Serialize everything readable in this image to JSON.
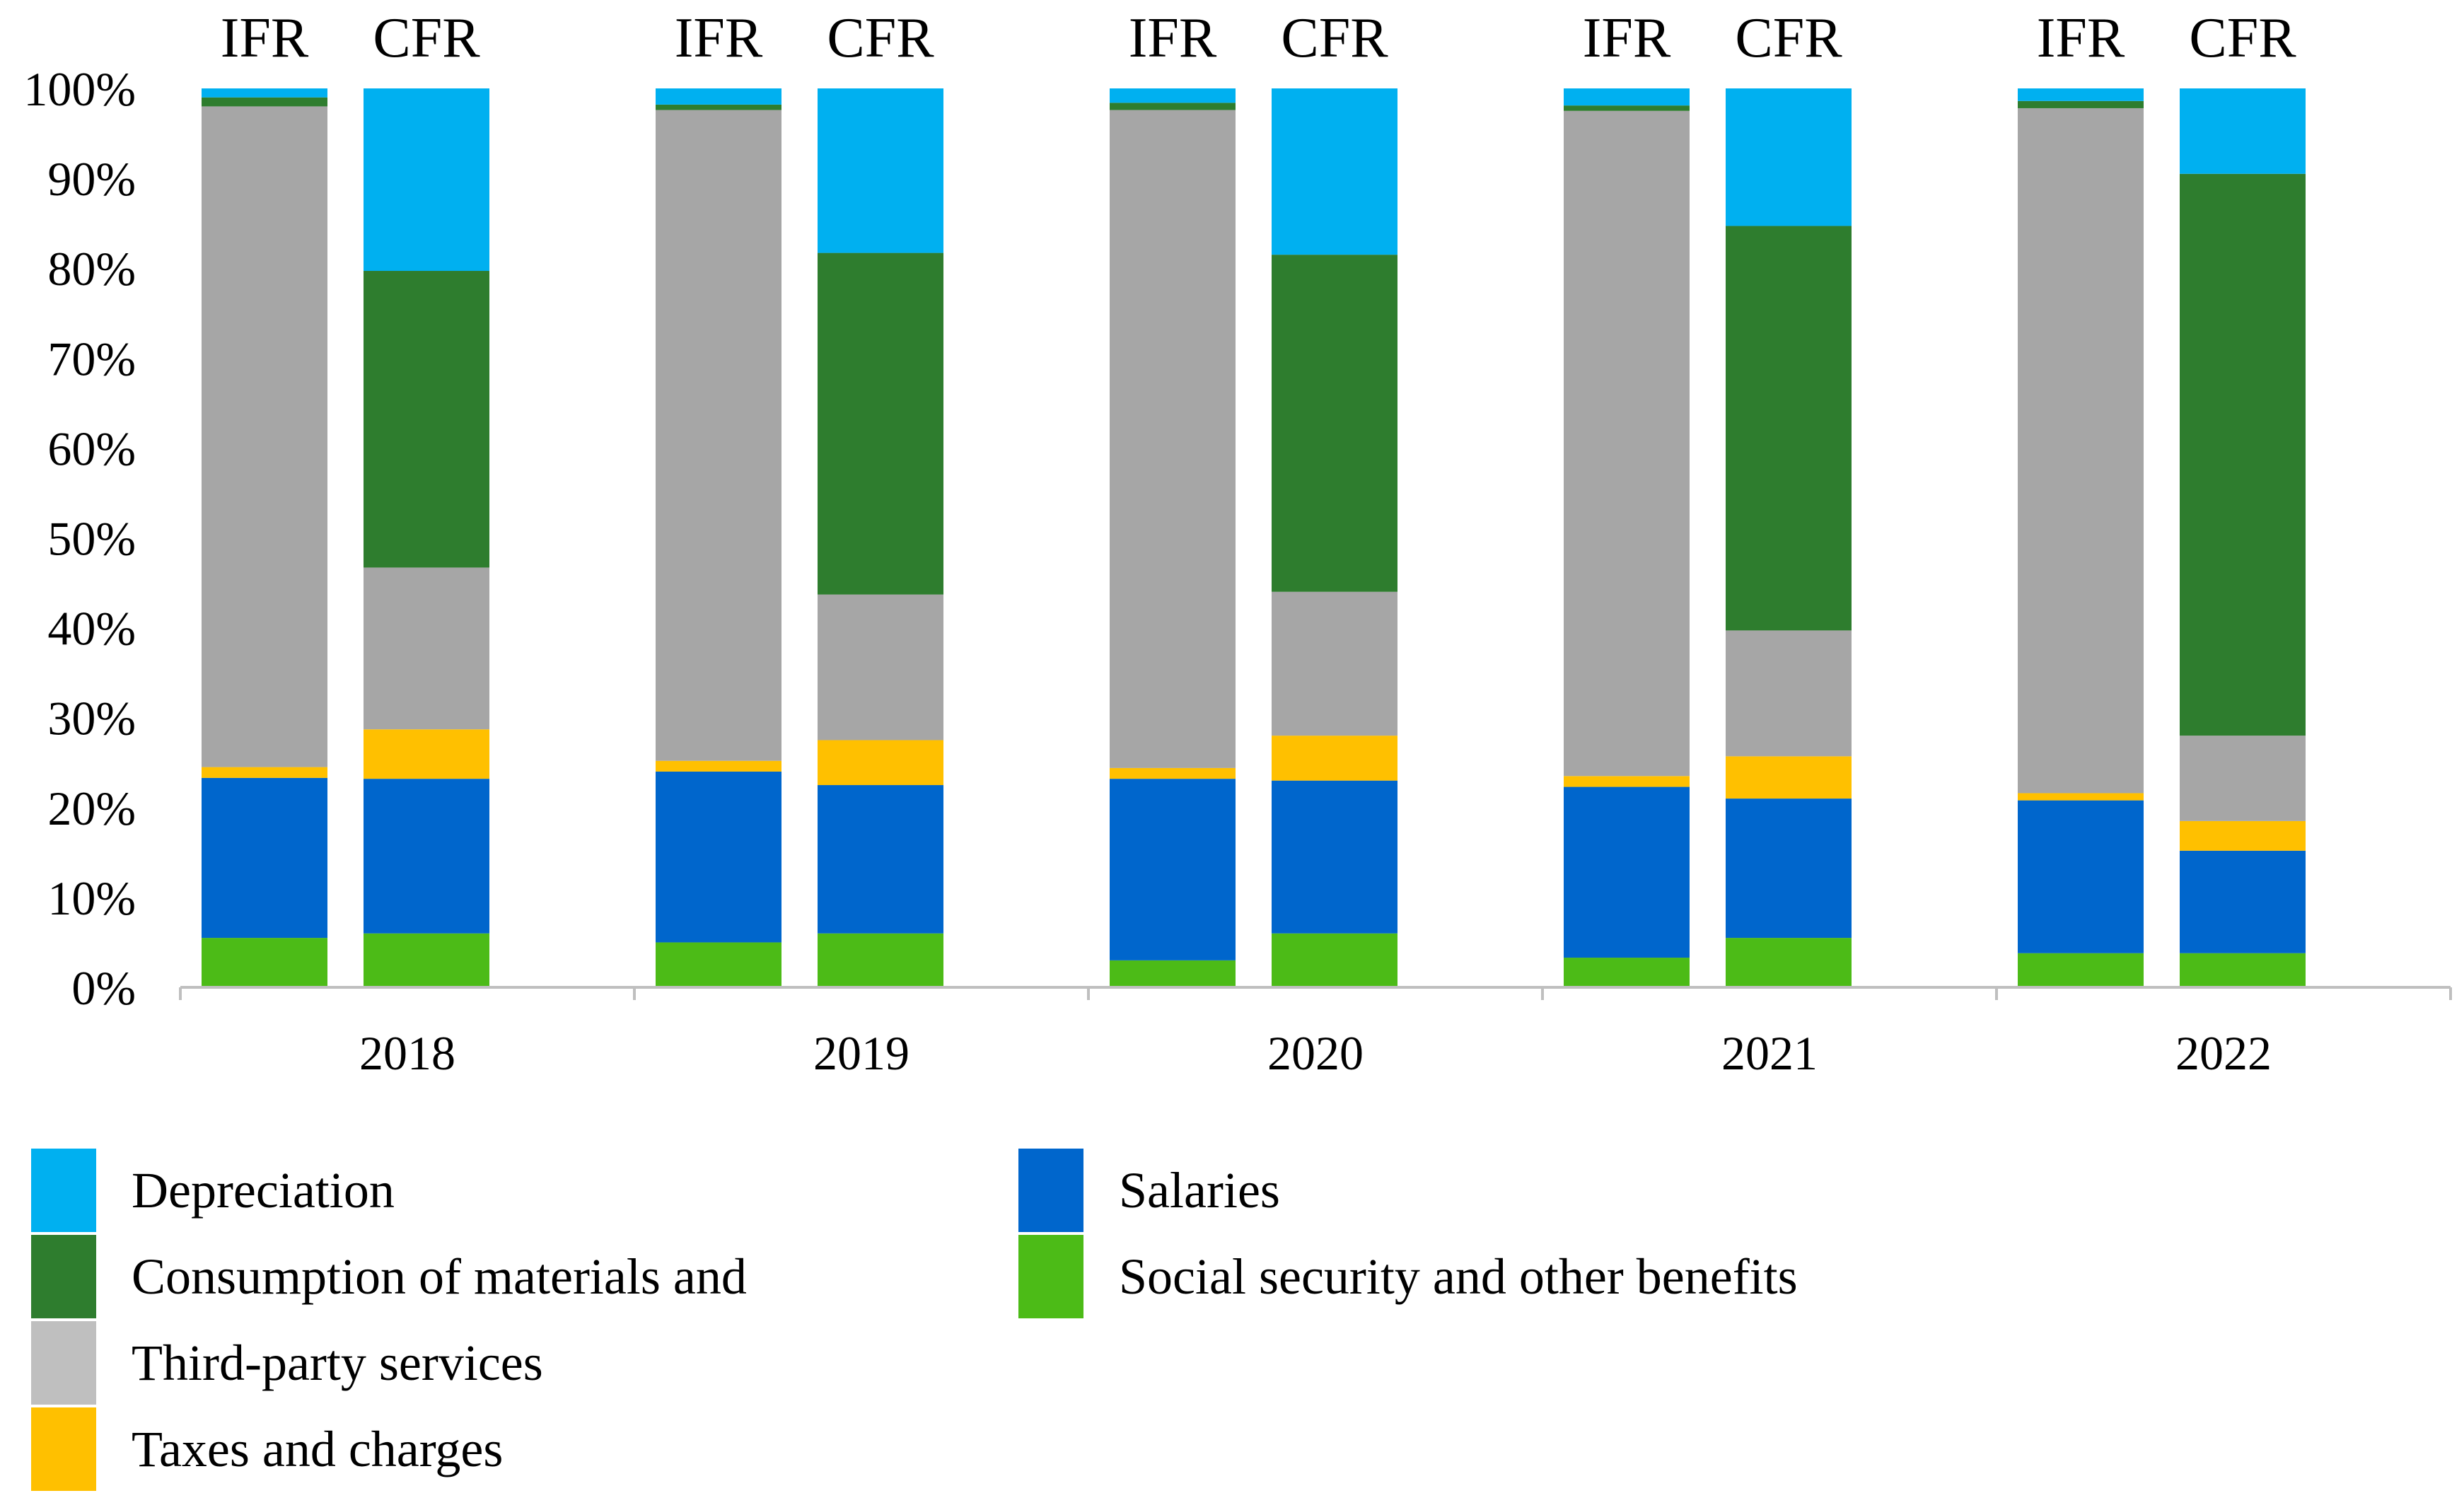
{
  "chart_data": {
    "type": "bar",
    "stacked": true,
    "normalized": true,
    "title": "",
    "xlabel": "",
    "ylabel": "",
    "ylim": [
      0,
      100
    ],
    "y_tick_labels": [
      "0%",
      "10%",
      "20%",
      "30%",
      "40%",
      "50%",
      "60%",
      "70%",
      "80%",
      "90%",
      "100%"
    ],
    "groups": [
      "2018",
      "2019",
      "2020",
      "2021",
      "2022"
    ],
    "bar_labels": [
      "IFR",
      "CFR"
    ],
    "series": [
      {
        "name": "Social security and other benefits",
        "color": "#4cbb17",
        "values": {
          "IFR": [
            5.5,
            5,
            3,
            3.3,
            3.8
          ],
          "CFR": [
            6,
            6,
            6,
            5.5,
            3.8
          ]
        }
      },
      {
        "name": "Salaries",
        "color": "#0066cc",
        "values": {
          "IFR": [
            17.8,
            19,
            20.2,
            19,
            17
          ],
          "CFR": [
            17.2,
            16.5,
            17,
            15.5,
            11.4
          ]
        }
      },
      {
        "name": "Taxes and charges",
        "color": "#ffc000",
        "values": {
          "IFR": [
            1.2,
            1.2,
            1.2,
            1.2,
            0.8
          ],
          "CFR": [
            5.5,
            5,
            5,
            4.7,
            3.3
          ]
        }
      },
      {
        "name": "Third-party services",
        "color": "#a6a6a6",
        "values": {
          "IFR": [
            73.5,
            72.4,
            73.2,
            74,
            76.2
          ],
          "CFR": [
            18,
            16.2,
            16,
            14,
            9.5
          ]
        }
      },
      {
        "name": "Consumption of materials and",
        "color": "#2e7d2e",
        "values": {
          "IFR": [
            1,
            0.6,
            0.8,
            0.6,
            0.8
          ],
          "CFR": [
            33,
            38,
            37.5,
            45,
            62.5
          ]
        }
      },
      {
        "name": "Depreciation",
        "color": "#00b0f0",
        "values": {
          "IFR": [
            1,
            1.8,
            1.6,
            1.9,
            1.4
          ],
          "CFR": [
            20.3,
            18.3,
            18.5,
            15.3,
            9.5
          ]
        }
      }
    ]
  },
  "legend": [
    {
      "label": "Depreciation",
      "color": "#00b0f0"
    },
    {
      "label": "Consumption of materials and",
      "color": "#2e7d2e"
    },
    {
      "label": "Third-party services",
      "color": "#bfbfbf"
    },
    {
      "label": "Taxes and charges",
      "color": "#ffc000"
    },
    {
      "label": "Salaries",
      "color": "#0066cc"
    },
    {
      "label": "Social security and other benefits",
      "color": "#4cbb17"
    }
  ]
}
